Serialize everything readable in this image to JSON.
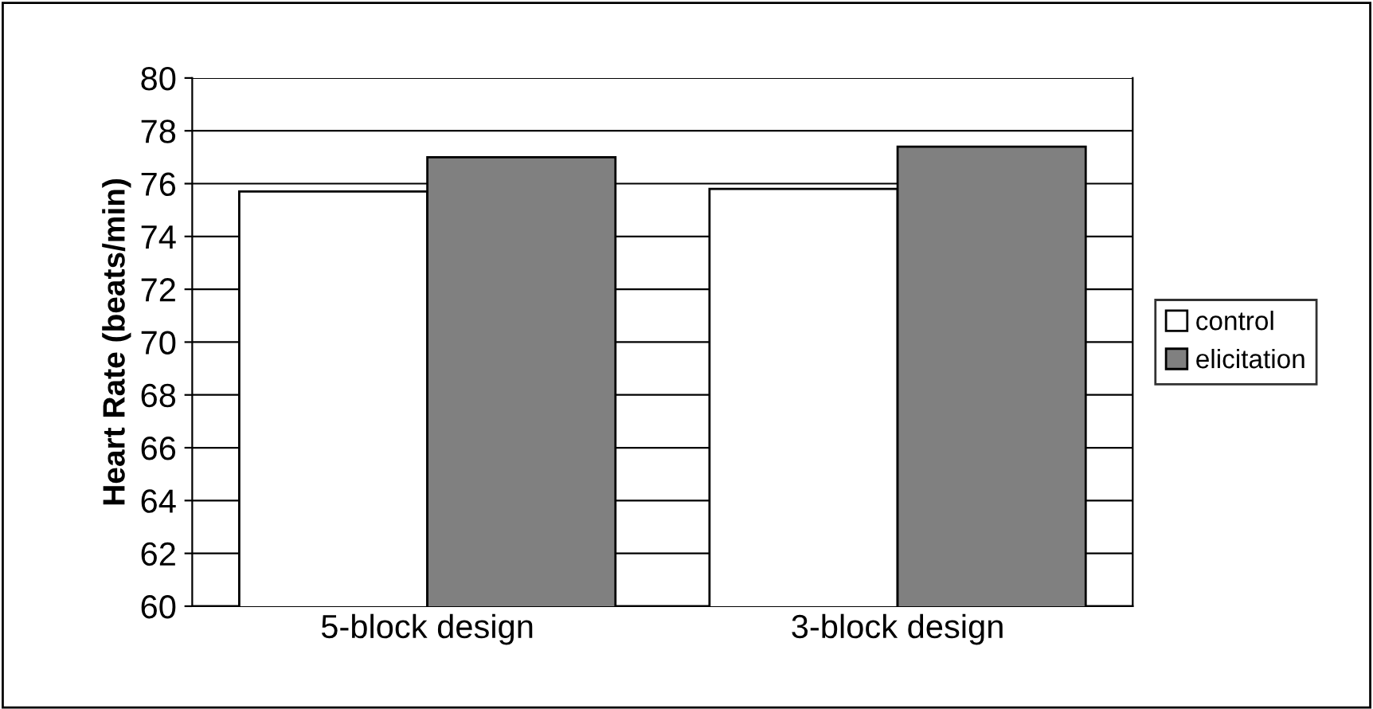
{
  "chart_data": {
    "type": "bar",
    "ylabel": "Heart Rate (beats/min)",
    "categories": [
      "5-block design",
      "3-block design"
    ],
    "series": [
      {
        "name": "control",
        "color": "#ffffff",
        "values": [
          75.7,
          75.8
        ]
      },
      {
        "name": "elicitation",
        "color": "#808080",
        "values": [
          77.0,
          77.4
        ]
      }
    ],
    "ylim": [
      60,
      80
    ],
    "yticks": [
      60,
      62,
      64,
      66,
      68,
      70,
      72,
      74,
      76,
      78,
      80
    ],
    "grid": "y",
    "legend": "right"
  }
}
